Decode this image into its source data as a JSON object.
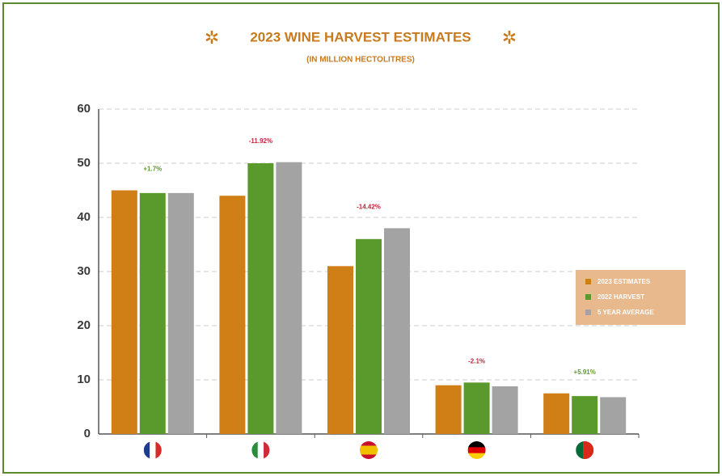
{
  "chart_data": {
    "type": "bar",
    "title": "2023 WINE HARVEST  ESTIMATES",
    "subtitle": "(IN MILLION HECTOLITRES)",
    "categories": [
      null,
      null,
      null,
      null,
      null
    ],
    "series": [
      {
        "name": "2023 ESTIMATES",
        "color": "#d07f17",
        "values": [
          45,
          44,
          31,
          9,
          7.5
        ]
      },
      {
        "name": "2022 HARVEST",
        "color": "#5a9a2c",
        "values": [
          44.5,
          50,
          36,
          9.5,
          7
        ]
      },
      {
        "name": "5 YEAR AVERAGE",
        "color": "#a3a3a3",
        "values": [
          44.5,
          50.2,
          38,
          8.8,
          6.8
        ]
      }
    ],
    "annotations": [
      {
        "text": "+1.7%",
        "color": "#5a9a2c"
      },
      {
        "text": "-11.92%",
        "color": "#c0263b"
      },
      {
        "text": "-14.42%",
        "color": "#c0263b"
      },
      {
        "text": "-2.1%",
        "color": "#c0263b"
      },
      {
        "text": "+5.91%",
        "color": "#5a9a2c"
      }
    ],
    "ylim": [
      0,
      60
    ],
    "yticks": [
      0,
      10,
      20,
      30,
      40,
      50,
      60
    ],
    "grid": true,
    "legend_position": "right"
  }
}
